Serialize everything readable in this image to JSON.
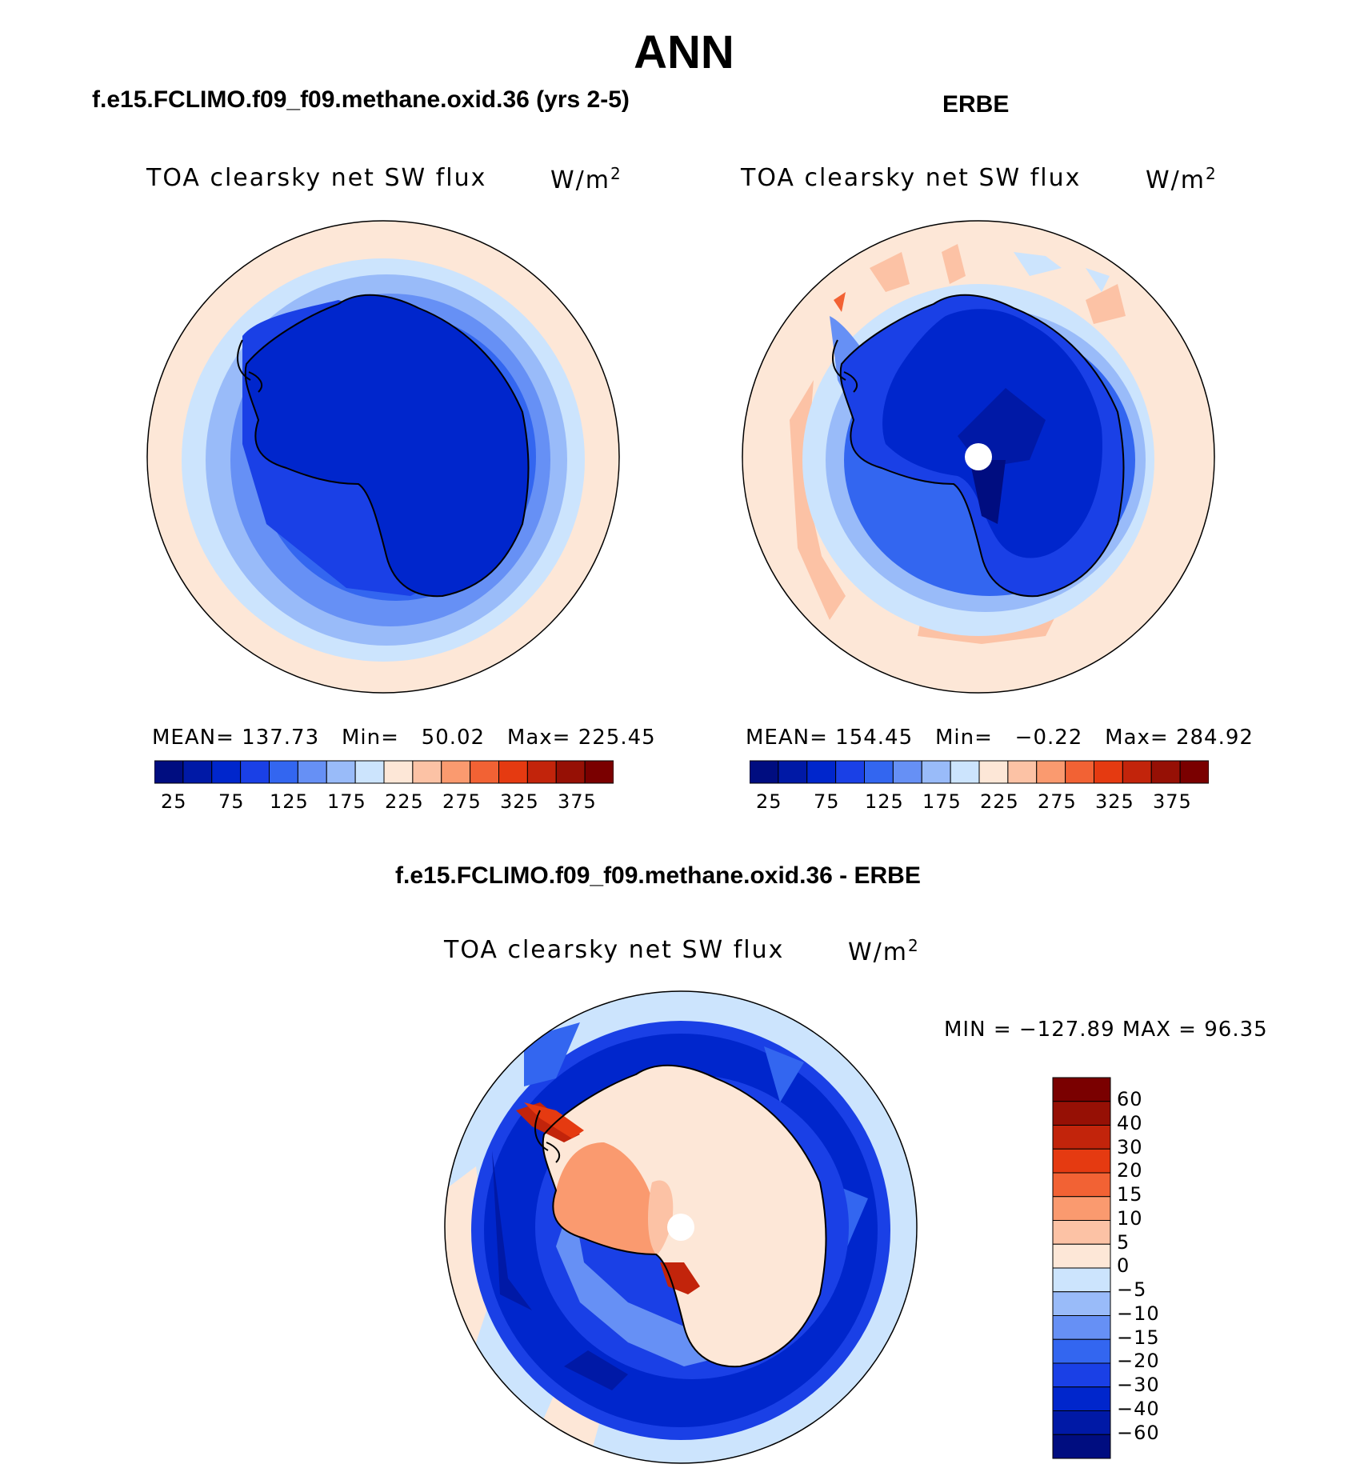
{
  "title": "ANN",
  "panels": {
    "model": {
      "case_title": "f.e15.FCLIMO.f09_f09.methane.oxid.36 (yrs 2-5)",
      "variable": "TOA clearsky net SW flux",
      "units": "W/m",
      "units_sup": "2",
      "stats": {
        "mean_label": "MEAN=",
        "mean": "137.73",
        "min_label": "Min=",
        "min": "50.02",
        "max_label": "Max=",
        "max": "225.45"
      }
    },
    "obs": {
      "case_title": "ERBE",
      "variable": "TOA clearsky net SW flux",
      "units": "W/m",
      "units_sup": "2",
      "stats": {
        "mean_label": "MEAN=",
        "mean": "154.45",
        "min_label": "Min=",
        "min": "−0.22",
        "max_label": "Max=",
        "max": "284.92"
      }
    },
    "diff": {
      "case_title": "f.e15.FCLIMO.f09_f09.methane.oxid.36 - ERBE",
      "variable": "TOA clearsky net SW flux",
      "units": "W/m",
      "units_sup": "2",
      "minmax": "MIN = −127.89 MAX =  96.35"
    }
  },
  "colorbars": {
    "absolute": {
      "colors": [
        "#000d80",
        "#0019a6",
        "#0026cc",
        "#1a40e6",
        "#3366f0",
        "#6690f5",
        "#99bbf9",
        "#cce4fd",
        "#fde7d7",
        "#fcc2a5",
        "#fa9a6f",
        "#f26234",
        "#e53a11",
        "#c2240b",
        "#961005",
        "#7a0000"
      ],
      "tick_labels": [
        "25",
        "75",
        "125",
        "175",
        "225",
        "275",
        "325",
        "375"
      ]
    },
    "difference": {
      "colors": [
        "#000d80",
        "#0019a6",
        "#0026cc",
        "#1a40e6",
        "#3366f0",
        "#6690f5",
        "#99bbf9",
        "#cce4fd",
        "#fde7d7",
        "#fcc2a5",
        "#fa9a6f",
        "#f26234",
        "#e53a11",
        "#c2240b",
        "#961005",
        "#7a0000"
      ],
      "tick_labels": [
        "60",
        "40",
        "30",
        "20",
        "15",
        "10",
        "5",
        "0",
        "−5",
        "−10",
        "−15",
        "−20",
        "−30",
        "−40",
        "−60"
      ]
    }
  }
}
